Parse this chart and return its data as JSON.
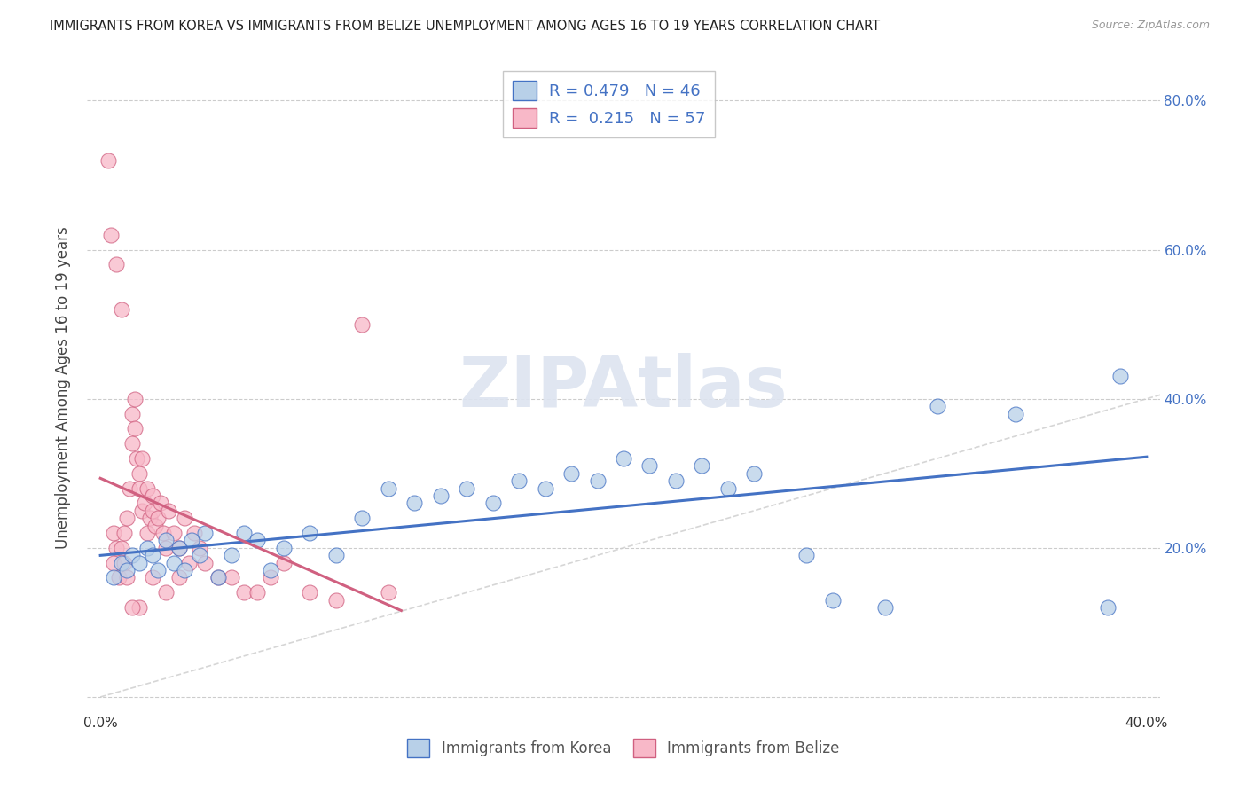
{
  "title": "IMMIGRANTS FROM KOREA VS IMMIGRANTS FROM BELIZE UNEMPLOYMENT AMONG AGES 16 TO 19 YEARS CORRELATION CHART",
  "source": "Source: ZipAtlas.com",
  "ylabel": "Unemployment Among Ages 16 to 19 years",
  "legend_korea_R": "0.479",
  "legend_korea_N": "46",
  "legend_belize_R": "0.215",
  "legend_belize_N": "57",
  "color_korea_fill": "#b8d0e8",
  "color_belize_fill": "#f8b8c8",
  "color_korea_edge": "#4472c4",
  "color_belize_edge": "#d06080",
  "color_korea_line": "#4472c4",
  "color_belize_line": "#d06080",
  "color_diagonal": "#cccccc",
  "watermark": "ZIPAtlas",
  "xlim": [
    0.0,
    0.4
  ],
  "ylim": [
    0.0,
    0.82
  ],
  "x_ticks": [
    0.0,
    0.05,
    0.1,
    0.15,
    0.2,
    0.25,
    0.3,
    0.35,
    0.4
  ],
  "y_ticks": [
    0.0,
    0.2,
    0.4,
    0.6,
    0.8
  ],
  "korea_x": [
    0.005,
    0.008,
    0.01,
    0.012,
    0.015,
    0.018,
    0.02,
    0.022,
    0.025,
    0.028,
    0.03,
    0.032,
    0.035,
    0.038,
    0.04,
    0.045,
    0.05,
    0.055,
    0.06,
    0.065,
    0.07,
    0.08,
    0.09,
    0.1,
    0.11,
    0.12,
    0.13,
    0.14,
    0.15,
    0.16,
    0.17,
    0.18,
    0.19,
    0.2,
    0.21,
    0.22,
    0.23,
    0.24,
    0.25,
    0.27,
    0.28,
    0.3,
    0.32,
    0.35,
    0.385,
    0.39
  ],
  "korea_y": [
    0.16,
    0.18,
    0.17,
    0.19,
    0.18,
    0.2,
    0.19,
    0.17,
    0.21,
    0.18,
    0.2,
    0.17,
    0.21,
    0.19,
    0.22,
    0.16,
    0.19,
    0.22,
    0.21,
    0.17,
    0.2,
    0.22,
    0.19,
    0.24,
    0.28,
    0.26,
    0.27,
    0.28,
    0.26,
    0.29,
    0.28,
    0.3,
    0.29,
    0.32,
    0.31,
    0.29,
    0.31,
    0.28,
    0.3,
    0.19,
    0.13,
    0.12,
    0.39,
    0.38,
    0.12,
    0.43
  ],
  "belize_x": [
    0.003,
    0.004,
    0.005,
    0.005,
    0.006,
    0.006,
    0.007,
    0.008,
    0.008,
    0.009,
    0.009,
    0.01,
    0.01,
    0.011,
    0.012,
    0.012,
    0.013,
    0.013,
    0.014,
    0.015,
    0.015,
    0.016,
    0.016,
    0.017,
    0.018,
    0.018,
    0.019,
    0.02,
    0.02,
    0.021,
    0.022,
    0.023,
    0.024,
    0.025,
    0.026,
    0.028,
    0.03,
    0.032,
    0.034,
    0.036,
    0.038,
    0.04,
    0.045,
    0.05,
    0.055,
    0.06,
    0.065,
    0.07,
    0.08,
    0.09,
    0.1,
    0.11,
    0.02,
    0.025,
    0.03,
    0.015,
    0.012
  ],
  "belize_y": [
    0.72,
    0.62,
    0.18,
    0.22,
    0.58,
    0.2,
    0.16,
    0.52,
    0.2,
    0.18,
    0.22,
    0.16,
    0.24,
    0.28,
    0.34,
    0.38,
    0.36,
    0.4,
    0.32,
    0.3,
    0.28,
    0.32,
    0.25,
    0.26,
    0.28,
    0.22,
    0.24,
    0.25,
    0.27,
    0.23,
    0.24,
    0.26,
    0.22,
    0.2,
    0.25,
    0.22,
    0.2,
    0.24,
    0.18,
    0.22,
    0.2,
    0.18,
    0.16,
    0.16,
    0.14,
    0.14,
    0.16,
    0.18,
    0.14,
    0.13,
    0.5,
    0.14,
    0.16,
    0.14,
    0.16,
    0.12,
    0.12
  ]
}
